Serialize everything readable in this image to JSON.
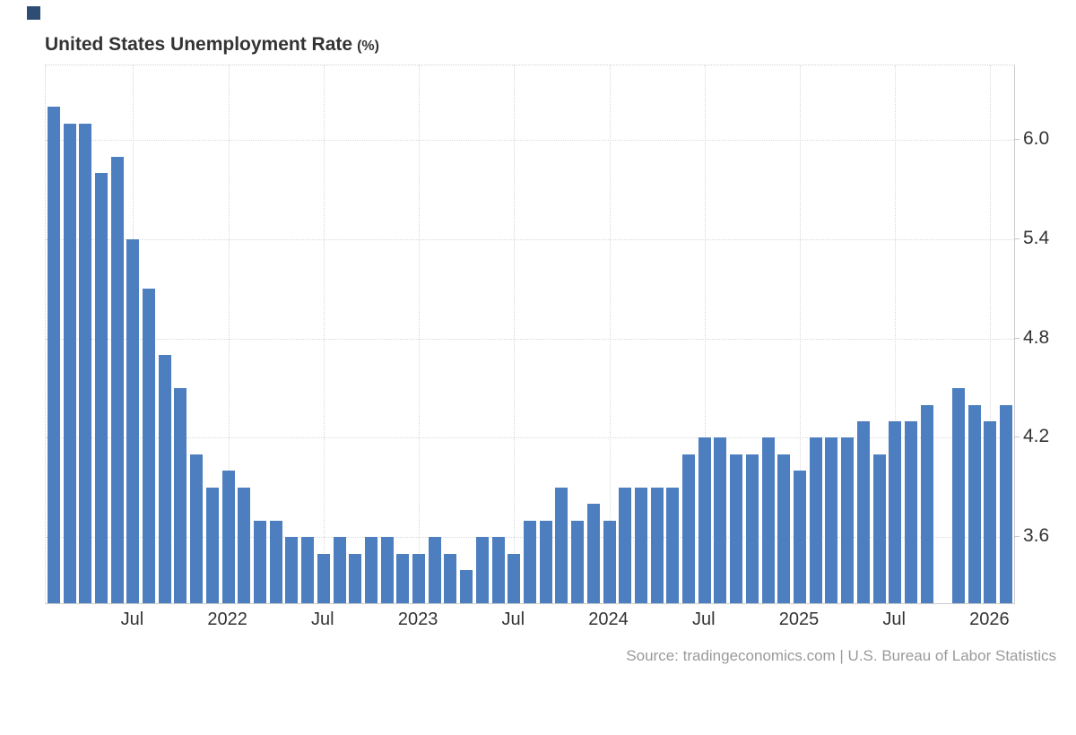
{
  "brand": {
    "logo_color": "#2e4d73"
  },
  "title": {
    "main": "United States Unemployment Rate",
    "suffix": "(%)"
  },
  "source": {
    "text": "Source: tradingeconomics.com | U.S. Bureau of Labor Statistics"
  },
  "chart_data": {
    "type": "bar",
    "title": "United States Unemployment Rate (%)",
    "xlabel": "",
    "ylabel": "Unemployment Rate (%)",
    "bar_color": "#4d7ebf",
    "grid": true,
    "legend_position": "none",
    "ylim": [
      3.2,
      6.45
    ],
    "missing_months": [
      "Oct 2025"
    ],
    "y_ticks": [
      {
        "value": 6.0,
        "label": "6.0"
      },
      {
        "value": 5.4,
        "label": "5.4"
      },
      {
        "value": 4.8,
        "label": "4.8"
      },
      {
        "value": 4.2,
        "label": "4.2"
      },
      {
        "value": 3.6,
        "label": "3.6"
      }
    ],
    "x_ticks": [
      {
        "index": 5,
        "label": "Jul"
      },
      {
        "index": 11,
        "label": "2022"
      },
      {
        "index": 17,
        "label": "Jul"
      },
      {
        "index": 23,
        "label": "2023"
      },
      {
        "index": 29,
        "label": "Jul"
      },
      {
        "index": 35,
        "label": "2024"
      },
      {
        "index": 41,
        "label": "Jul"
      },
      {
        "index": 47,
        "label": "2025"
      },
      {
        "index": 53,
        "label": "Jul"
      },
      {
        "index": 59,
        "label": "2026"
      }
    ],
    "categories": [
      "Feb 2021",
      "Mar 2021",
      "Apr 2021",
      "May 2021",
      "Jun 2021",
      "Jul 2021",
      "Aug 2021",
      "Sep 2021",
      "Oct 2021",
      "Nov 2021",
      "Dec 2021",
      "Jan 2022",
      "Feb 2022",
      "Mar 2022",
      "Apr 2022",
      "May 2022",
      "Jun 2022",
      "Jul 2022",
      "Aug 2022",
      "Sep 2022",
      "Oct 2022",
      "Nov 2022",
      "Dec 2022",
      "Jan 2023",
      "Feb 2023",
      "Mar 2023",
      "Apr 2023",
      "May 2023",
      "Jun 2023",
      "Jul 2023",
      "Aug 2023",
      "Sep 2023",
      "Oct 2023",
      "Nov 2023",
      "Dec 2023",
      "Jan 2024",
      "Feb 2024",
      "Mar 2024",
      "Apr 2024",
      "May 2024",
      "Jun 2024",
      "Jul 2024",
      "Aug 2024",
      "Sep 2024",
      "Oct 2024",
      "Nov 2024",
      "Dec 2024",
      "Jan 2025",
      "Feb 2025",
      "Mar 2025",
      "Apr 2025",
      "May 2025",
      "Jun 2025",
      "Jul 2025",
      "Aug 2025",
      "Sep 2025",
      "Oct 2025",
      "Nov 2025",
      "Dec 2025",
      "Jan 2026",
      "Feb 2026"
    ],
    "values": [
      6.2,
      6.1,
      6.1,
      5.8,
      5.9,
      5.4,
      5.1,
      4.7,
      4.5,
      4.1,
      3.9,
      4.0,
      3.9,
      3.7,
      3.7,
      3.6,
      3.6,
      3.5,
      3.6,
      3.5,
      3.6,
      3.6,
      3.5,
      3.5,
      3.6,
      3.5,
      3.4,
      3.6,
      3.6,
      3.5,
      3.7,
      3.7,
      3.9,
      3.7,
      3.8,
      3.7,
      3.9,
      3.9,
      3.9,
      3.9,
      4.1,
      4.2,
      4.2,
      4.1,
      4.1,
      4.2,
      4.1,
      4.0,
      4.2,
      4.2,
      4.2,
      4.3,
      4.1,
      4.3,
      4.3,
      4.4,
      null,
      4.5,
      4.4,
      4.3,
      4.4
    ]
  }
}
